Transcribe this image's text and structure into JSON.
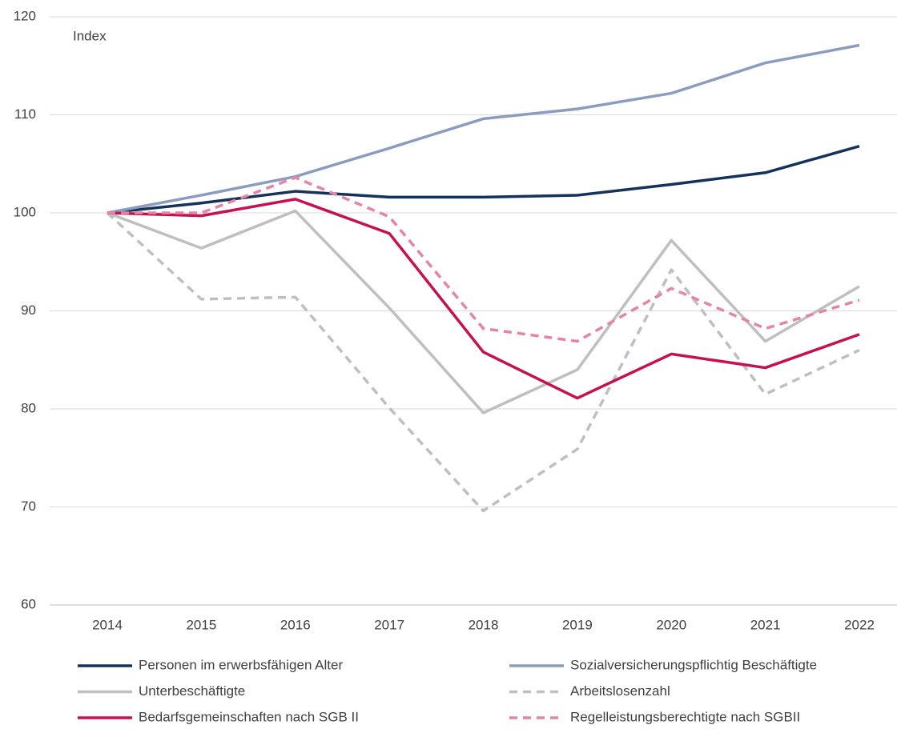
{
  "chart_data": {
    "type": "line",
    "annotation": "Index",
    "categories": [
      "2014",
      "2015",
      "2016",
      "2017",
      "2018",
      "2019",
      "2020",
      "2021",
      "2022"
    ],
    "ylim": [
      60,
      120
    ],
    "yticks": [
      60,
      70,
      80,
      90,
      100,
      110,
      120
    ],
    "grid": true,
    "series": [
      {
        "name": "Personen im erwerbsfähigen Alter",
        "color": "#14325c",
        "dashed": false,
        "values": [
          100,
          101.0,
          102.2,
          101.6,
          101.6,
          101.8,
          102.9,
          104.1,
          106.8
        ]
      },
      {
        "name": "Sozialversicherungspflichtig Beschäftigte",
        "color": "#8c9cc0",
        "dashed": false,
        "values": [
          100,
          101.8,
          103.7,
          106.6,
          109.6,
          110.6,
          112.2,
          115.3,
          117.1
        ]
      },
      {
        "name": "Unterbeschäftigte",
        "color": "#bfbfbf",
        "dashed": false,
        "values": [
          100,
          96.4,
          100.2,
          90.3,
          79.6,
          84.0,
          97.2,
          86.9,
          92.5
        ]
      },
      {
        "name": "Arbeitslosenzahl",
        "color": "#bfbfbf",
        "dashed": true,
        "values": [
          100,
          91.2,
          91.4,
          80.1,
          69.6,
          75.9,
          94.2,
          81.5,
          86.0
        ]
      },
      {
        "name": "Bedarfsgemeinschaften nach SGB II",
        "color": "#c8104f",
        "dashed": false,
        "values": [
          100,
          99.7,
          101.4,
          97.9,
          85.8,
          81.1,
          85.6,
          84.2,
          87.6
        ]
      },
      {
        "name": "Regelleistungsberechtigte nach SGBII",
        "color": "#e683a6",
        "dashed": true,
        "values": [
          100,
          100.0,
          103.6,
          99.6,
          88.2,
          86.9,
          92.3,
          88.2,
          91.1
        ]
      }
    ]
  }
}
